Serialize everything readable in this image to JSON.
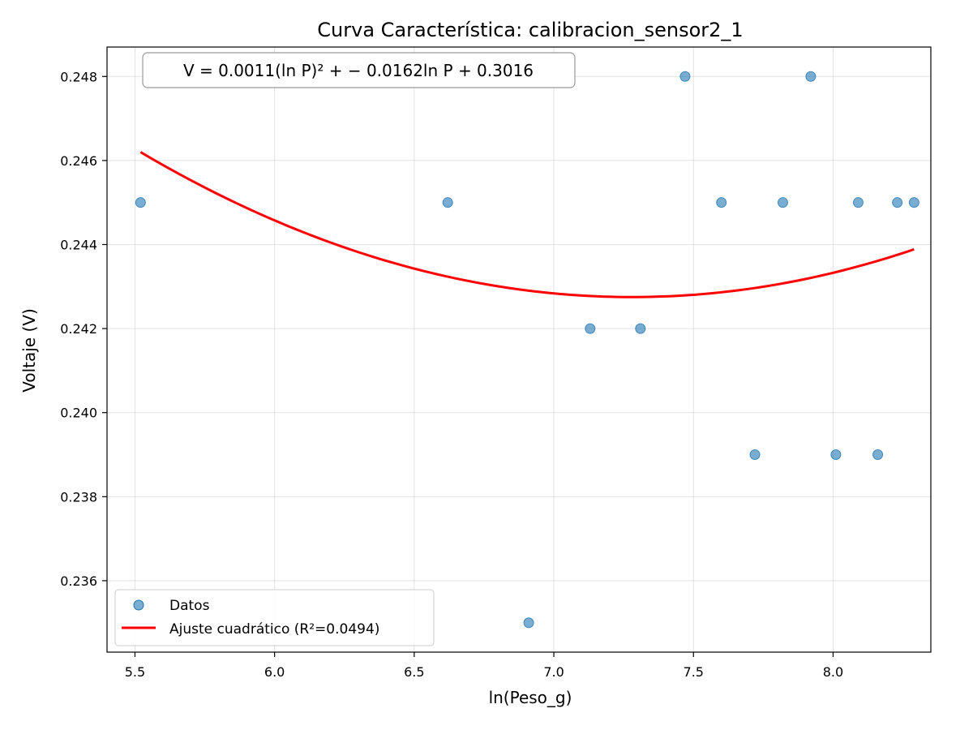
{
  "chart_data": {
    "type": "scatter",
    "title": "Curva Característica: calibracion_sensor2_1",
    "xlabel": "ln(Peso_g)",
    "ylabel": "Voltaje (V)",
    "xlim": [
      5.4,
      8.35
    ],
    "ylim": [
      0.2343,
      0.2487
    ],
    "xticks": [
      "5.5",
      "6.0",
      "6.5",
      "7.0",
      "7.5",
      "8.0"
    ],
    "xtick_values": [
      5.5,
      6.0,
      6.5,
      7.0,
      7.5,
      8.0
    ],
    "yticks": [
      "0.236",
      "0.238",
      "0.240",
      "0.242",
      "0.244",
      "0.246",
      "0.248"
    ],
    "ytick_values": [
      0.236,
      0.238,
      0.24,
      0.242,
      0.244,
      0.246,
      0.248
    ],
    "grid": true,
    "equation": "V = 0.0011(ln P)² + − 0.0162ln P + 0.3016",
    "points_color": "#1f77b4",
    "fit_color": "#ff0000",
    "series": [
      {
        "name": "Datos",
        "kind": "scatter",
        "x": [
          5.52,
          6.22,
          6.62,
          6.91,
          7.13,
          7.31,
          7.47,
          7.6,
          7.72,
          7.82,
          7.92,
          8.01,
          8.09,
          8.16,
          8.23,
          8.29
        ],
        "y": [
          0.245,
          0.248,
          0.245,
          0.235,
          0.242,
          0.242,
          0.248,
          0.245,
          0.239,
          0.245,
          0.248,
          0.239,
          0.245,
          0.239,
          0.245,
          0.245
        ]
      },
      {
        "name": "Ajuste cuadrático (R²=0.0494)",
        "kind": "line",
        "coefficients": {
          "a": 0.0011,
          "b": -0.0162,
          "c": 0.3016
        },
        "x_range": [
          5.52,
          8.29
        ],
        "key_points": {
          "x": [
            5.52,
            7.28,
            8.29
          ],
          "y": [
            0.2462,
            0.24275,
            0.2439
          ]
        }
      }
    ],
    "legend": {
      "position": "lower-left",
      "entries": [
        "Datos",
        "Ajuste cuadrático (R²=0.0494)"
      ]
    }
  }
}
